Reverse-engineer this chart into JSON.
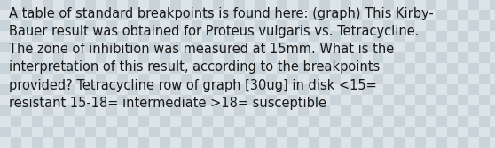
{
  "text": "A table of standard breakpoints is found here: (graph) This Kirby-\nBauer result was obtained for Proteus vulgaris vs. Tetracycline.\nThe zone of inhibition was measured at 15mm. What is the\ninterpretation of this result, according to the breakpoints\nprovided? Tetracycline row of graph [30ug] in disk <15=\nresistant 15-18= intermediate >18= susceptible",
  "background_color_light": "#dce4e8",
  "background_color_dark": "#c8d4da",
  "text_color": "#1a1a1a",
  "font_size": 10.5,
  "fig_width": 5.58,
  "fig_height": 1.67,
  "dpi": 100,
  "grid_size": 12
}
